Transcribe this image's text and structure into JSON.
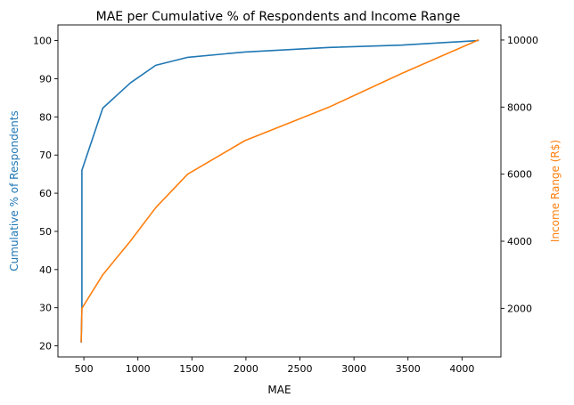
{
  "chart_data": {
    "type": "line",
    "title": "MAE per Cumulative % of Respondents and Income Range",
    "xlabel": "MAE",
    "xlim": [
      260,
      4360
    ],
    "xticks": [
      500,
      1000,
      1500,
      2000,
      2500,
      3000,
      3500,
      4000
    ],
    "left_axis": {
      "label": "Cumulative % of Respondents",
      "color": "#1f77b4",
      "ylim": [
        17.1,
        104.1
      ],
      "ticks": [
        20,
        30,
        40,
        50,
        60,
        70,
        80,
        90,
        100
      ]
    },
    "right_axis": {
      "label": "Income Range (R$)",
      "color": "#ff7f0e",
      "ylim": [
        550,
        10450
      ],
      "ticks": [
        2000,
        4000,
        6000,
        8000,
        10000
      ]
    },
    "series": [
      {
        "axis": "left",
        "color": "#1f77b4",
        "x": [
          475,
          482,
          482,
          675,
          930,
          1165,
          1460,
          1990,
          2770,
          3440,
          4150
        ],
        "y": [
          21,
          30,
          66,
          82.3,
          88.9,
          93.5,
          95.6,
          97,
          98.2,
          98.8,
          100
        ]
      },
      {
        "axis": "right",
        "color": "#ff7f0e",
        "x": [
          475,
          482,
          675,
          930,
          1165,
          1460,
          1990,
          2770,
          3440,
          4150
        ],
        "y": [
          1000,
          2000,
          3000,
          4000,
          5000,
          6000,
          7000,
          8000,
          9000,
          10000
        ]
      }
    ]
  }
}
